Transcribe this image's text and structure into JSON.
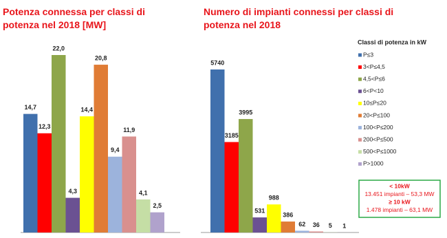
{
  "chart_data": [
    {
      "type": "bar",
      "title": "Potenza connessa per classi di potenza nel 2018 [MW]",
      "values": [
        14.7,
        12.3,
        22.0,
        4.3,
        14.4,
        20.8,
        9.4,
        11.9,
        4.1,
        2.5
      ],
      "value_labels": [
        "14,7",
        "12,3",
        "22,0",
        "4,3",
        "14,4",
        "20,8",
        "9,4",
        "11,9",
        "4,1",
        "2,5"
      ]
    },
    {
      "type": "bar",
      "title": "Numero di impianti connessi per classi di potenza nel 2018",
      "values": [
        5740,
        3185,
        3995,
        531,
        988,
        386,
        62,
        36,
        5,
        1
      ]
    }
  ],
  "legend": {
    "title": "Classi di potenza in kW",
    "names": [
      "P≤3",
      "3<P≤4,5",
      "4,5<P≤6",
      "6<P<10",
      "10≤P≤20",
      "20<P≤100",
      "100<P≤200",
      "200<P≤500",
      "500<P≤1000",
      "P>1000"
    ],
    "colors": [
      "#4070ad",
      "#ff0000",
      "#8ea64a",
      "#6b5192",
      "#ffff00",
      "#e07c35",
      "#9cb3dc",
      "#d9908e",
      "#c5dea5",
      "#b0a2cc"
    ]
  },
  "annotation": {
    "lines": [
      "< 10kW",
      "13.451 impianti – 53,3 MW",
      "≥ 10 kW",
      "1.478 impianti – 63,1 MW"
    ]
  }
}
